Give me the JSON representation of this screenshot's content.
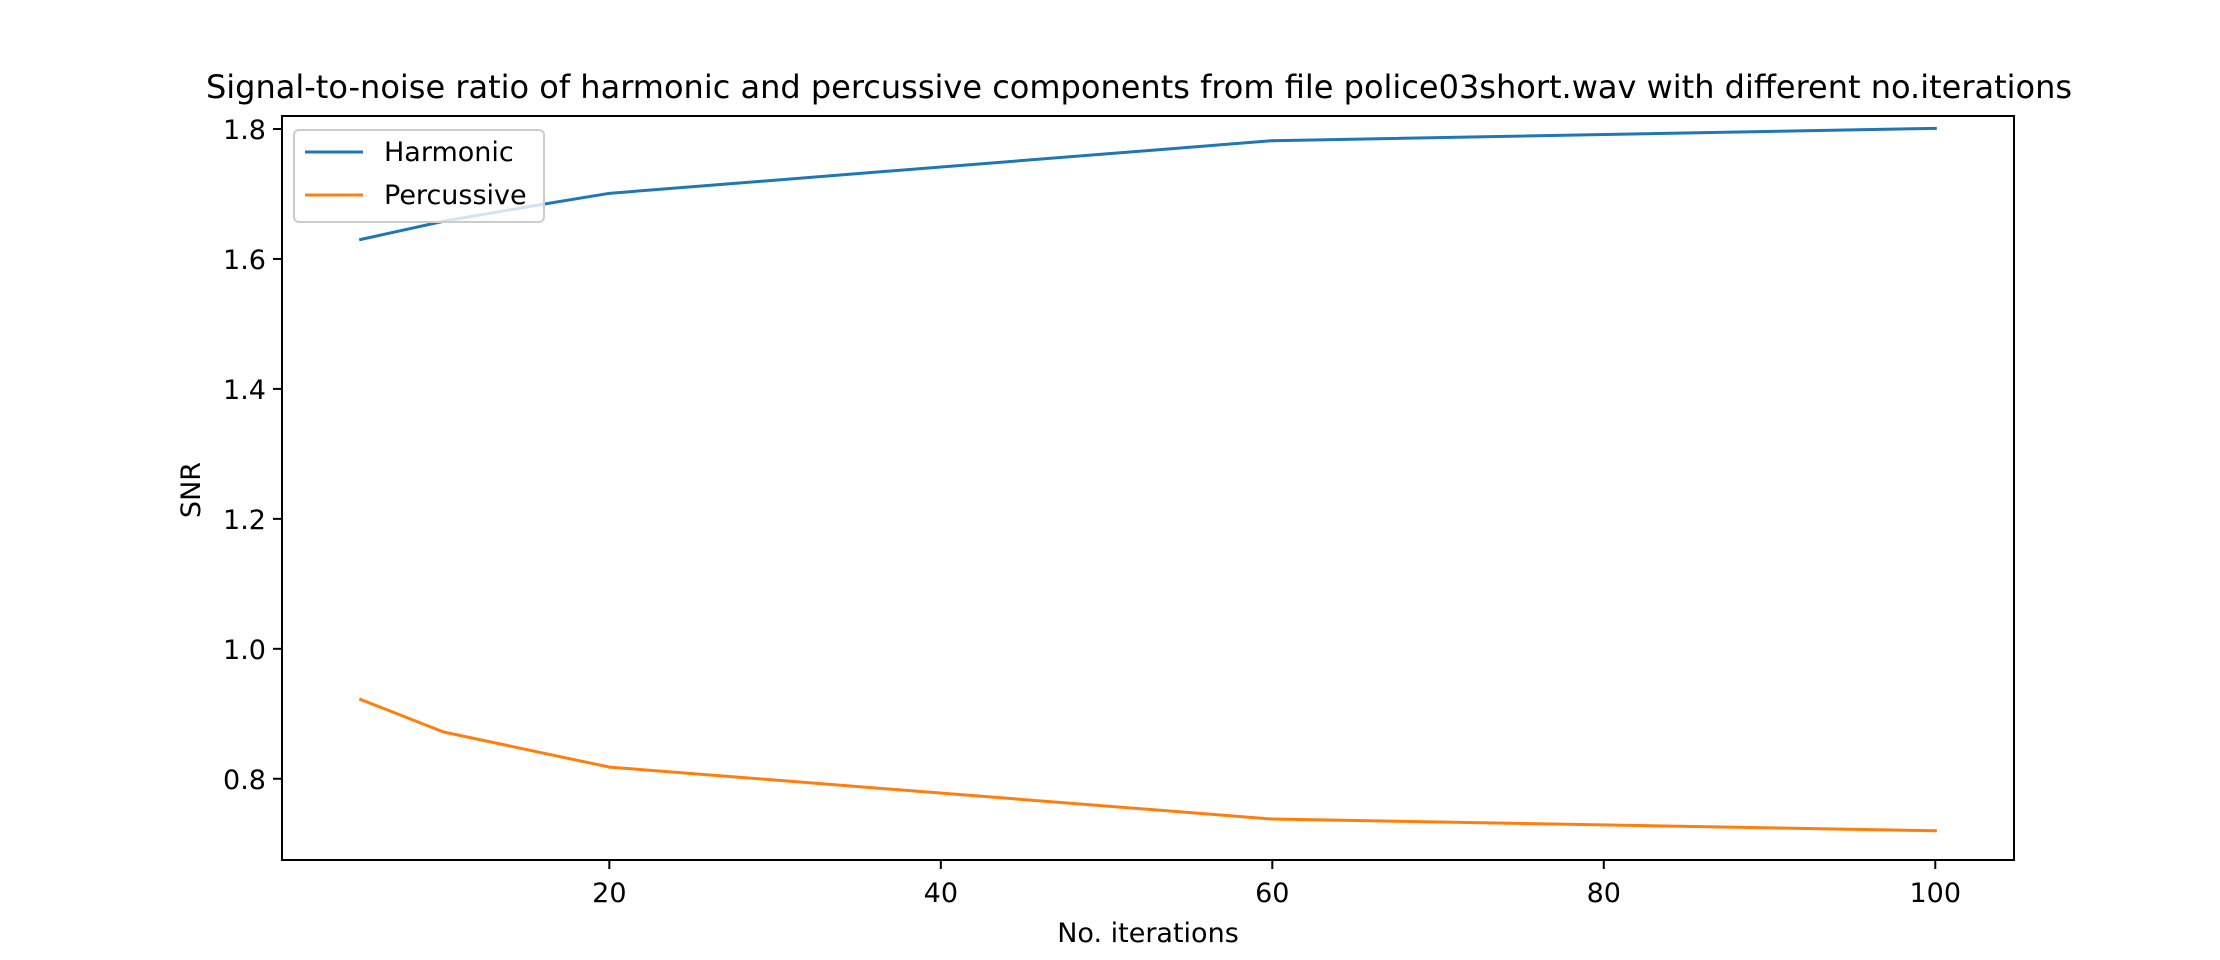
{
  "chart_data": {
    "type": "line",
    "title": "Signal-to-noise ratio of harmonic and percussive components from file police03short.wav with different no.iterations",
    "xlabel": "No. iterations",
    "ylabel": "SNR",
    "xlim": [
      0.25,
      104.75
    ],
    "ylim": [
      0.675,
      1.82
    ],
    "x_ticks": [
      20,
      40,
      60,
      80,
      100
    ],
    "y_ticks": [
      0.8,
      1.0,
      1.2,
      1.4,
      1.6,
      1.8
    ],
    "x_tick_labels": [
      "20",
      "40",
      "60",
      "80",
      "100"
    ],
    "y_tick_labels": [
      "0.8",
      "1.0",
      "1.2",
      "1.4",
      "1.6",
      "1.8"
    ],
    "grid": false,
    "legend_position": "top-left",
    "series": [
      {
        "name": "Harmonic",
        "color": "#1f77b4",
        "x": [
          5,
          10,
          15,
          20,
          60,
          100
        ],
        "y": [
          1.63,
          1.658,
          1.68,
          1.701,
          1.782,
          1.801
        ]
      },
      {
        "name": "Percussive",
        "color": "#ff7f0e",
        "x": [
          5,
          10,
          15,
          20,
          60,
          100
        ],
        "y": [
          0.922,
          0.872,
          0.845,
          0.818,
          0.738,
          0.72
        ]
      }
    ]
  }
}
